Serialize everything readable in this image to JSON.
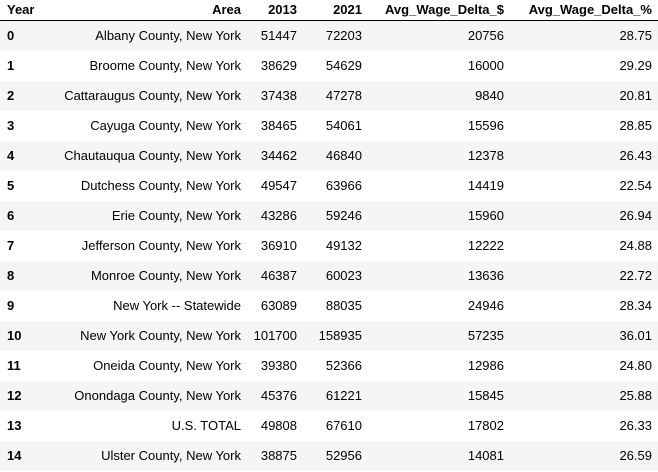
{
  "table": {
    "columns": [
      "Year",
      "Area",
      "2013",
      "2021",
      "Avg_Wage_Delta_$",
      "Avg_Wage_Delta_%"
    ],
    "rows": [
      {
        "index": "0",
        "area": "Albany County, New York",
        "y2013": "51447",
        "y2021": "72203",
        "delta_usd": "20756",
        "delta_pct": "28.75"
      },
      {
        "index": "1",
        "area": "Broome County, New York",
        "y2013": "38629",
        "y2021": "54629",
        "delta_usd": "16000",
        "delta_pct": "29.29"
      },
      {
        "index": "2",
        "area": "Cattaraugus County, New York",
        "y2013": "37438",
        "y2021": "47278",
        "delta_usd": "9840",
        "delta_pct": "20.81"
      },
      {
        "index": "3",
        "area": "Cayuga County, New York",
        "y2013": "38465",
        "y2021": "54061",
        "delta_usd": "15596",
        "delta_pct": "28.85"
      },
      {
        "index": "4",
        "area": "Chautauqua County, New York",
        "y2013": "34462",
        "y2021": "46840",
        "delta_usd": "12378",
        "delta_pct": "26.43"
      },
      {
        "index": "5",
        "area": "Dutchess County, New York",
        "y2013": "49547",
        "y2021": "63966",
        "delta_usd": "14419",
        "delta_pct": "22.54"
      },
      {
        "index": "6",
        "area": "Erie County, New York",
        "y2013": "43286",
        "y2021": "59246",
        "delta_usd": "15960",
        "delta_pct": "26.94"
      },
      {
        "index": "7",
        "area": "Jefferson County, New York",
        "y2013": "36910",
        "y2021": "49132",
        "delta_usd": "12222",
        "delta_pct": "24.88"
      },
      {
        "index": "8",
        "area": "Monroe County, New York",
        "y2013": "46387",
        "y2021": "60023",
        "delta_usd": "13636",
        "delta_pct": "22.72"
      },
      {
        "index": "9",
        "area": "New York -- Statewide",
        "y2013": "63089",
        "y2021": "88035",
        "delta_usd": "24946",
        "delta_pct": "28.34"
      },
      {
        "index": "10",
        "area": "New York County, New York",
        "y2013": "101700",
        "y2021": "158935",
        "delta_usd": "57235",
        "delta_pct": "36.01"
      },
      {
        "index": "11",
        "area": "Oneida County, New York",
        "y2013": "39380",
        "y2021": "52366",
        "delta_usd": "12986",
        "delta_pct": "24.80"
      },
      {
        "index": "12",
        "area": "Onondaga County, New York",
        "y2013": "45376",
        "y2021": "61221",
        "delta_usd": "15845",
        "delta_pct": "25.88"
      },
      {
        "index": "13",
        "area": "U.S. TOTAL",
        "y2013": "49808",
        "y2021": "67610",
        "delta_usd": "17802",
        "delta_pct": "26.33"
      },
      {
        "index": "14",
        "area": "Ulster County, New York",
        "y2013": "38875",
        "y2021": "52956",
        "delta_usd": "14081",
        "delta_pct": "26.59"
      }
    ]
  }
}
